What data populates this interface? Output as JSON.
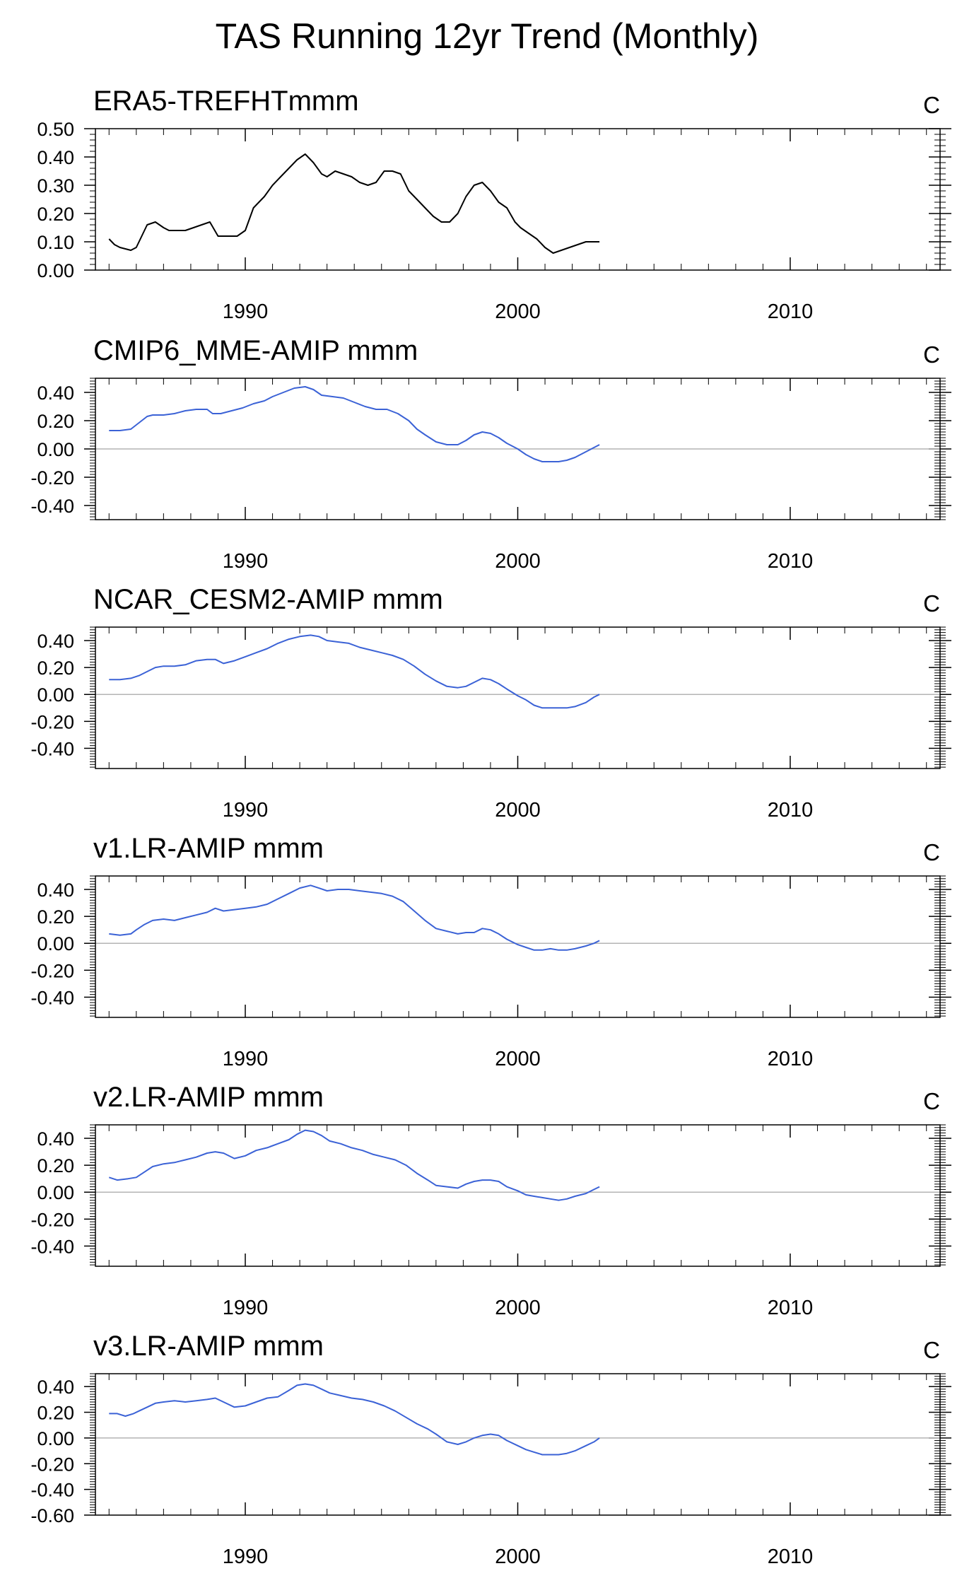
{
  "title": "TAS Running 12yr Trend (Monthly)",
  "chart_data": [
    {
      "type": "line",
      "title": "ERA5-TREFHTmmm",
      "units": "C",
      "xlabel": "",
      "ylabel": "",
      "xlim": [
        1984.5,
        2015.5
      ],
      "ylim": [
        0.0,
        0.5
      ],
      "xticks": [
        1990,
        2000,
        2010
      ],
      "yticks": [
        0.0,
        0.1,
        0.2,
        0.3,
        0.4,
        0.5
      ],
      "ytick_labels": [
        "0.00",
        "0.10",
        "0.20",
        "0.30",
        "0.40",
        "0.50"
      ],
      "zero_line": false,
      "color": "#000000",
      "series": [
        {
          "x": [
            1985.0,
            1985.2,
            1985.4,
            1985.8,
            1986.0,
            1986.2,
            1986.4,
            1986.7,
            1987.0,
            1987.2,
            1987.5,
            1987.8,
            1988.1,
            1988.4,
            1988.7,
            1989.0,
            1989.3,
            1989.7,
            1990.0,
            1990.3,
            1990.7,
            1991.0,
            1991.3,
            1991.6,
            1991.9,
            1992.2,
            1992.5,
            1992.8,
            1993.0,
            1993.3,
            1993.6,
            1993.9,
            1994.2,
            1994.5,
            1994.8,
            1995.1,
            1995.4,
            1995.7,
            1996.0,
            1996.3,
            1996.6,
            1996.9,
            1997.2,
            1997.5,
            1997.8,
            1998.1,
            1998.4,
            1998.7,
            1999.0,
            1999.3,
            1999.6,
            1999.9,
            2000.1,
            2000.4,
            2000.7,
            2001.0,
            2001.3,
            2001.6,
            2001.9,
            2002.2,
            2002.5,
            2002.8,
            2003.0
          ],
          "y": [
            0.11,
            0.09,
            0.08,
            0.07,
            0.08,
            0.12,
            0.16,
            0.17,
            0.15,
            0.14,
            0.14,
            0.14,
            0.15,
            0.16,
            0.17,
            0.12,
            0.12,
            0.12,
            0.14,
            0.22,
            0.26,
            0.3,
            0.33,
            0.36,
            0.39,
            0.41,
            0.38,
            0.34,
            0.33,
            0.35,
            0.34,
            0.33,
            0.31,
            0.3,
            0.31,
            0.35,
            0.35,
            0.34,
            0.28,
            0.25,
            0.22,
            0.19,
            0.17,
            0.17,
            0.2,
            0.26,
            0.3,
            0.31,
            0.28,
            0.24,
            0.22,
            0.17,
            0.15,
            0.13,
            0.11,
            0.08,
            0.06,
            0.07,
            0.08,
            0.09,
            0.1,
            0.1,
            0.1
          ]
        }
      ]
    },
    {
      "type": "line",
      "title": "CMIP6_MME-AMIP  mmm",
      "units": "C",
      "xlabel": "",
      "ylabel": "",
      "xlim": [
        1984.5,
        2015.5
      ],
      "ylim": [
        -0.5,
        0.5
      ],
      "xticks": [
        1990,
        2000,
        2010
      ],
      "yticks": [
        -0.4,
        -0.2,
        0.0,
        0.2,
        0.4
      ],
      "ytick_labels": [
        "-0.40",
        "-0.20",
        "0.00",
        "0.20",
        "0.40"
      ],
      "zero_line": true,
      "color": "#3b62d6",
      "series": [
        {
          "x": [
            1985.0,
            1985.4,
            1985.8,
            1986.0,
            1986.4,
            1986.6,
            1987.0,
            1987.4,
            1987.8,
            1988.2,
            1988.6,
            1988.8,
            1989.1,
            1989.5,
            1989.9,
            1990.3,
            1990.7,
            1991.0,
            1991.4,
            1991.8,
            1992.2,
            1992.5,
            1992.8,
            1993.2,
            1993.6,
            1994.0,
            1994.4,
            1994.8,
            1995.2,
            1995.6,
            1996.0,
            1996.3,
            1996.6,
            1997.0,
            1997.4,
            1997.8,
            1998.1,
            1998.4,
            1998.7,
            1999.0,
            1999.3,
            1999.6,
            2000.0,
            2000.3,
            2000.6,
            2000.9,
            2001.2,
            2001.5,
            2001.8,
            2002.1,
            2002.5,
            2002.8,
            2003.0
          ],
          "y": [
            0.13,
            0.13,
            0.14,
            0.17,
            0.23,
            0.24,
            0.24,
            0.25,
            0.27,
            0.28,
            0.28,
            0.25,
            0.25,
            0.27,
            0.29,
            0.32,
            0.34,
            0.37,
            0.4,
            0.43,
            0.44,
            0.42,
            0.38,
            0.37,
            0.36,
            0.33,
            0.3,
            0.28,
            0.28,
            0.25,
            0.2,
            0.14,
            0.1,
            0.05,
            0.03,
            0.03,
            0.06,
            0.1,
            0.12,
            0.11,
            0.08,
            0.04,
            0.0,
            -0.04,
            -0.07,
            -0.09,
            -0.09,
            -0.09,
            -0.08,
            -0.06,
            -0.02,
            0.01,
            0.03
          ]
        }
      ]
    },
    {
      "type": "line",
      "title": "NCAR_CESM2-AMIP  mmm",
      "units": "C",
      "xlabel": "",
      "ylabel": "",
      "xlim": [
        1984.5,
        2015.5
      ],
      "ylim": [
        -0.55,
        0.5
      ],
      "xticks": [
        1990,
        2000,
        2010
      ],
      "yticks": [
        -0.4,
        -0.2,
        0.0,
        0.2,
        0.4
      ],
      "ytick_labels": [
        "-0.40",
        "-0.20",
        "0.00",
        "0.20",
        "0.40"
      ],
      "zero_line": true,
      "color": "#3b62d6",
      "series": [
        {
          "x": [
            1985.0,
            1985.4,
            1985.8,
            1986.1,
            1986.4,
            1986.7,
            1987.0,
            1987.4,
            1987.8,
            1988.2,
            1988.6,
            1988.9,
            1989.2,
            1989.6,
            1990.0,
            1990.4,
            1990.8,
            1991.2,
            1991.6,
            1992.0,
            1992.4,
            1992.7,
            1993.0,
            1993.4,
            1993.8,
            1994.2,
            1994.6,
            1995.0,
            1995.4,
            1995.8,
            1996.2,
            1996.6,
            1997.0,
            1997.4,
            1997.8,
            1998.1,
            1998.4,
            1998.7,
            1999.0,
            1999.3,
            1999.6,
            2000.0,
            2000.3,
            2000.6,
            2000.9,
            2001.2,
            2001.5,
            2001.8,
            2002.1,
            2002.5,
            2002.8,
            2003.0
          ],
          "y": [
            0.11,
            0.11,
            0.12,
            0.14,
            0.17,
            0.2,
            0.21,
            0.21,
            0.22,
            0.25,
            0.26,
            0.26,
            0.23,
            0.25,
            0.28,
            0.31,
            0.34,
            0.38,
            0.41,
            0.43,
            0.44,
            0.43,
            0.4,
            0.39,
            0.38,
            0.35,
            0.33,
            0.31,
            0.29,
            0.26,
            0.21,
            0.15,
            0.1,
            0.06,
            0.05,
            0.06,
            0.09,
            0.12,
            0.11,
            0.08,
            0.04,
            -0.01,
            -0.04,
            -0.08,
            -0.1,
            -0.1,
            -0.1,
            -0.1,
            -0.09,
            -0.06,
            -0.02,
            -0.0
          ]
        }
      ]
    },
    {
      "type": "line",
      "title": "v1.LR-AMIP  mmm",
      "units": "C",
      "xlabel": "",
      "ylabel": "",
      "xlim": [
        1984.5,
        2015.5
      ],
      "ylim": [
        -0.55,
        0.5
      ],
      "xticks": [
        1990,
        2000,
        2010
      ],
      "yticks": [
        -0.4,
        -0.2,
        0.0,
        0.2,
        0.4
      ],
      "ytick_labels": [
        "-0.40",
        "-0.20",
        "0.00",
        "0.20",
        "0.40"
      ],
      "zero_line": true,
      "color": "#3b62d6",
      "series": [
        {
          "x": [
            1985.0,
            1985.4,
            1985.8,
            1986.0,
            1986.3,
            1986.6,
            1987.0,
            1987.4,
            1987.8,
            1988.2,
            1988.6,
            1988.9,
            1989.2,
            1989.6,
            1990.0,
            1990.4,
            1990.8,
            1991.2,
            1991.6,
            1992.0,
            1992.4,
            1992.7,
            1993.0,
            1993.4,
            1993.8,
            1994.2,
            1994.6,
            1995.0,
            1995.4,
            1995.8,
            1996.2,
            1996.6,
            1997.0,
            1997.4,
            1997.8,
            1998.1,
            1998.4,
            1998.7,
            1999.0,
            1999.3,
            1999.6,
            2000.0,
            2000.3,
            2000.6,
            2000.9,
            2001.2,
            2001.5,
            2001.8,
            2002.1,
            2002.5,
            2002.8,
            2003.0
          ],
          "y": [
            0.07,
            0.06,
            0.07,
            0.1,
            0.14,
            0.17,
            0.18,
            0.17,
            0.19,
            0.21,
            0.23,
            0.26,
            0.24,
            0.25,
            0.26,
            0.27,
            0.29,
            0.33,
            0.37,
            0.41,
            0.43,
            0.41,
            0.39,
            0.4,
            0.4,
            0.39,
            0.38,
            0.37,
            0.35,
            0.31,
            0.24,
            0.17,
            0.11,
            0.09,
            0.07,
            0.08,
            0.08,
            0.11,
            0.1,
            0.07,
            0.03,
            -0.01,
            -0.03,
            -0.05,
            -0.05,
            -0.04,
            -0.05,
            -0.05,
            -0.04,
            -0.02,
            0.0,
            0.02
          ]
        }
      ]
    },
    {
      "type": "line",
      "title": "v2.LR-AMIP  mmm",
      "units": "C",
      "xlabel": "",
      "ylabel": "",
      "xlim": [
        1984.5,
        2015.5
      ],
      "ylim": [
        -0.55,
        0.5
      ],
      "xticks": [
        1990,
        2000,
        2010
      ],
      "yticks": [
        -0.4,
        -0.2,
        0.0,
        0.2,
        0.4
      ],
      "ytick_labels": [
        "-0.40",
        "-0.20",
        "0.00",
        "0.20",
        "0.40"
      ],
      "zero_line": true,
      "color": "#3b62d6",
      "series": [
        {
          "x": [
            1985.0,
            1985.3,
            1985.7,
            1986.0,
            1986.3,
            1986.6,
            1987.0,
            1987.4,
            1987.8,
            1988.2,
            1988.6,
            1988.9,
            1989.2,
            1989.6,
            1990.0,
            1990.4,
            1990.8,
            1991.2,
            1991.6,
            1991.9,
            1992.2,
            1992.5,
            1992.8,
            1993.1,
            1993.5,
            1993.9,
            1994.3,
            1994.7,
            1995.1,
            1995.5,
            1995.9,
            1996.3,
            1996.7,
            1997.0,
            1997.4,
            1997.8,
            1998.1,
            1998.4,
            1998.7,
            1999.0,
            1999.3,
            1999.6,
            2000.0,
            2000.3,
            2000.6,
            2000.9,
            2001.2,
            2001.5,
            2001.8,
            2002.1,
            2002.5,
            2002.8,
            2003.0
          ],
          "y": [
            0.11,
            0.09,
            0.1,
            0.11,
            0.15,
            0.19,
            0.21,
            0.22,
            0.24,
            0.26,
            0.29,
            0.3,
            0.29,
            0.25,
            0.27,
            0.31,
            0.33,
            0.36,
            0.39,
            0.43,
            0.46,
            0.45,
            0.42,
            0.38,
            0.36,
            0.33,
            0.31,
            0.28,
            0.26,
            0.24,
            0.2,
            0.14,
            0.09,
            0.05,
            0.04,
            0.03,
            0.06,
            0.08,
            0.09,
            0.09,
            0.08,
            0.04,
            0.01,
            -0.02,
            -0.03,
            -0.04,
            -0.05,
            -0.06,
            -0.05,
            -0.03,
            -0.01,
            0.02,
            0.04
          ]
        }
      ]
    },
    {
      "type": "line",
      "title": "v3.LR-AMIP  mmm",
      "units": "C",
      "xlabel": "",
      "ylabel": "",
      "xlim": [
        1984.5,
        2015.5
      ],
      "ylim": [
        -0.6,
        0.5
      ],
      "xticks": [
        1990,
        2000,
        2010
      ],
      "yticks": [
        -0.6,
        -0.4,
        -0.2,
        0.0,
        0.2,
        0.4
      ],
      "ytick_labels": [
        "-0.60",
        "-0.40",
        "-0.20",
        "0.00",
        "0.20",
        "0.40"
      ],
      "zero_line": true,
      "color": "#3b62d6",
      "series": [
        {
          "x": [
            1985.0,
            1985.3,
            1985.6,
            1985.9,
            1986.1,
            1986.4,
            1986.7,
            1987.0,
            1987.4,
            1987.8,
            1988.2,
            1988.6,
            1988.9,
            1989.2,
            1989.6,
            1990.0,
            1990.4,
            1990.8,
            1991.2,
            1991.6,
            1991.9,
            1992.2,
            1992.5,
            1992.8,
            1993.1,
            1993.5,
            1993.9,
            1994.3,
            1994.7,
            1995.1,
            1995.5,
            1995.9,
            1996.3,
            1996.7,
            1997.0,
            1997.4,
            1997.8,
            1998.1,
            1998.4,
            1998.7,
            1999.0,
            1999.3,
            1999.6,
            2000.0,
            2000.3,
            2000.6,
            2000.9,
            2001.2,
            2001.5,
            2001.8,
            2002.1,
            2002.5,
            2002.8,
            2003.0
          ],
          "y": [
            0.19,
            0.19,
            0.17,
            0.19,
            0.21,
            0.24,
            0.27,
            0.28,
            0.29,
            0.28,
            0.29,
            0.3,
            0.31,
            0.28,
            0.24,
            0.25,
            0.28,
            0.31,
            0.32,
            0.37,
            0.41,
            0.42,
            0.41,
            0.38,
            0.35,
            0.33,
            0.31,
            0.3,
            0.28,
            0.25,
            0.21,
            0.16,
            0.11,
            0.07,
            0.03,
            -0.03,
            -0.05,
            -0.03,
            0.0,
            0.02,
            0.03,
            0.02,
            -0.02,
            -0.06,
            -0.09,
            -0.11,
            -0.13,
            -0.13,
            -0.13,
            -0.12,
            -0.1,
            -0.06,
            -0.03,
            0.0
          ]
        }
      ]
    }
  ]
}
